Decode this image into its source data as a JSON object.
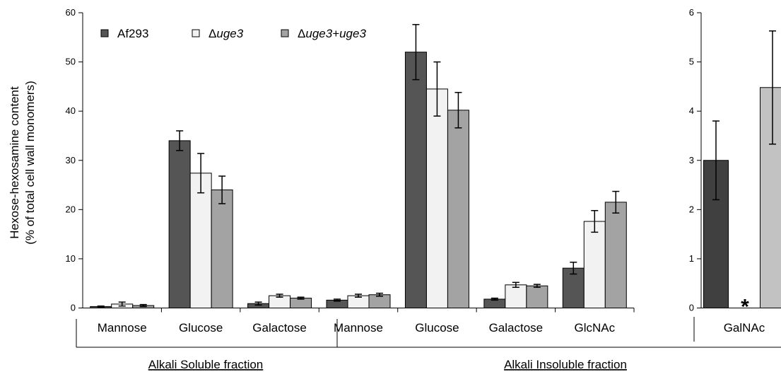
{
  "chart_data": [
    {
      "type": "bar",
      "ylabel_lines": [
        "Hexose-hexosamine content",
        "(% of total cell wall monomers)"
      ],
      "ylim": [
        0,
        60
      ],
      "yticks": [
        "0",
        "10",
        "20",
        "30",
        "40",
        "50",
        "60"
      ],
      "categories": [
        "Mannose",
        "Glucose",
        "Galactose",
        "Mannose",
        "Glucose",
        "Galactose",
        "GlcNAc"
      ],
      "groups": [
        {
          "label": "Alkali Soluble fraction",
          "categories": [
            0,
            1,
            2
          ]
        },
        {
          "label": "Alkali Insoluble fraction",
          "categories": [
            3,
            4,
            5,
            6
          ]
        }
      ],
      "series": [
        {
          "name": "Af293",
          "color": "#555555",
          "values": [
            0.3,
            34.0,
            0.9,
            1.6,
            52.0,
            1.8,
            8.1
          ],
          "errors": [
            0.1,
            2.0,
            0.3,
            0.2,
            5.6,
            0.2,
            1.2
          ]
        },
        {
          "name": "Δuge3",
          "color": "#f2f2f2",
          "values": [
            0.8,
            27.4,
            2.5,
            2.5,
            44.5,
            4.7,
            17.6
          ],
          "errors": [
            0.4,
            4.0,
            0.3,
            0.3,
            5.5,
            0.5,
            2.2
          ]
        },
        {
          "name": "Δuge3+uge3",
          "color": "#a3a3a3",
          "values": [
            0.5,
            24.0,
            2.0,
            2.7,
            40.2,
            4.5,
            21.5
          ],
          "errors": [
            0.2,
            2.8,
            0.2,
            0.3,
            3.6,
            0.3,
            2.2
          ]
        }
      ],
      "legend": [
        {
          "prefix": "",
          "italic": "",
          "suffix": "Af293"
        },
        {
          "prefix": "Δ",
          "italic": "uge3",
          "suffix": ""
        },
        {
          "prefix": "Δ",
          "italic": "uge3+uge3",
          "suffix": ""
        }
      ],
      "legend_position": "top-left",
      "grid": false
    },
    {
      "type": "bar",
      "ylim": [
        0,
        6
      ],
      "yticks": [
        "0",
        "1",
        "2",
        "3",
        "4",
        "5",
        "6"
      ],
      "categories": [
        "GalNAc"
      ],
      "series": [
        {
          "name": "Af293",
          "color": "#404040",
          "values": [
            3.0
          ],
          "errors": [
            0.8
          ]
        },
        {
          "name": "Δuge3",
          "color": "#ffffff",
          "values": [
            0
          ],
          "errors": [
            0
          ]
        },
        {
          "name": "Δuge3+uge3",
          "color": "#c2c2c2",
          "values": [
            4.48
          ],
          "errors": [
            1.15
          ]
        }
      ],
      "annotation": "*",
      "grid": false
    }
  ]
}
